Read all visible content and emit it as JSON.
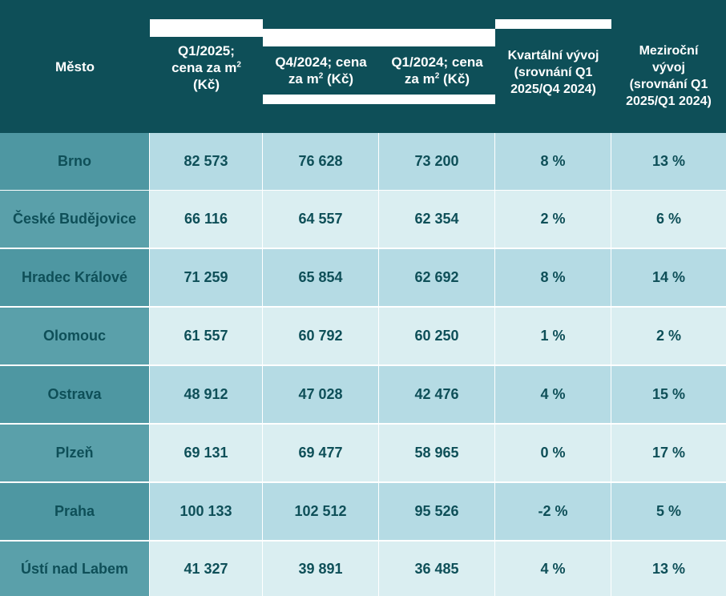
{
  "table": {
    "headers": {
      "city": "Město",
      "q1_2025_a": "Q1/2025;",
      "q1_2025_b": "cena za m",
      "q1_2025_c": "(Kč)",
      "q4_2024_a": "Q4/2024;  cena",
      "q4_2024_b": "za m",
      "q4_2024_c": " (Kč)",
      "q1_2024_a": "Q1/2024; cena",
      "q1_2024_b": "za m",
      "q1_2024_c": " (Kč)",
      "kvart_a": "Kvartální vývoj",
      "kvart_b": "(srovnání Q1",
      "kvart_c": "2025/Q4 2024)",
      "mezi_a": "Meziroční",
      "mezi_b": "vývoj",
      "mezi_c": "(srovnání Q1",
      "mezi_d": "2025/Q1 2024)",
      "sup": "2"
    },
    "rows": [
      {
        "city": "Brno",
        "q1_2025": "82 573",
        "q4_2024": "76 628",
        "q1_2024": "73 200",
        "kvart": "8 %",
        "mezi": "13 %"
      },
      {
        "city": "České Budějovice",
        "q1_2025": "66 116",
        "q4_2024": "64 557",
        "q1_2024": "62 354",
        "kvart": "2 %",
        "mezi": "6 %"
      },
      {
        "city": "Hradec Králové",
        "q1_2025": "71 259",
        "q4_2024": "65 854",
        "q1_2024": "62 692",
        "kvart": "8 %",
        "mezi": "14 %"
      },
      {
        "city": "Olomouc",
        "q1_2025": "61 557",
        "q4_2024": "60 792",
        "q1_2024": "60 250",
        "kvart": "1 %",
        "mezi": "2 %"
      },
      {
        "city": "Ostrava",
        "q1_2025": "48 912",
        "q4_2024": "47 028",
        "q1_2024": "42 476",
        "kvart": "4 %",
        "mezi": "15 %"
      },
      {
        "city": "Plzeň",
        "q1_2025": "69 131",
        "q4_2024": "69 477",
        "q1_2024": "58 965",
        "kvart": "0 %",
        "mezi": "17 %"
      },
      {
        "city": "Praha",
        "q1_2025": "100 133",
        "q4_2024": "102 512",
        "q1_2024": "95 526",
        "kvart": "-2 %",
        "mezi": "5 %"
      },
      {
        "city": "Ústí nad Labem",
        "q1_2025": "41 327",
        "q4_2024": "39 891",
        "q1_2024": "36 485",
        "kvart": "4 %",
        "mezi": "13 %"
      }
    ],
    "colors": {
      "header": "#0e4f58",
      "city_cell": "#4e97a2",
      "row_dark": "#b5dbe4",
      "row_light": "#daeef1",
      "text": "#0e4f58"
    }
  }
}
